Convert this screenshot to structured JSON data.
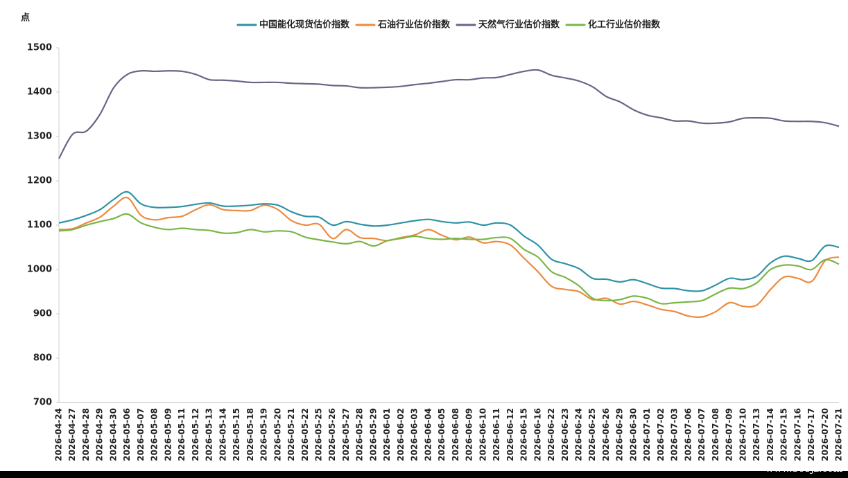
{
  "chart_data": {
    "type": "line",
    "y_label": "点",
    "categories": [
      "2026-04-24",
      "2026-04-27",
      "2026-04-28",
      "2026-04-29",
      "2026-04-30",
      "2026-05-06",
      "2026-05-07",
      "2026-05-08",
      "2026-05-09",
      "2026-05-11",
      "2026-05-12",
      "2026-05-13",
      "2026-05-14",
      "2026-05-15",
      "2026-05-18",
      "2026-05-19",
      "2026-05-20",
      "2026-05-21",
      "2026-05-22",
      "2026-05-25",
      "2026-05-26",
      "2026-05-27",
      "2026-05-28",
      "2026-05-29",
      "2026-06-01",
      "2026-06-02",
      "2026-06-03",
      "2026-06-04",
      "2026-06-05",
      "2026-06-08",
      "2026-06-09",
      "2026-06-10",
      "2026-06-11",
      "2026-06-12",
      "2026-06-15",
      "2026-06-16",
      "2026-06-22",
      "2026-06-23",
      "2026-06-24",
      "2026-06-25",
      "2026-06-26",
      "2026-06-29",
      "2026-06-30",
      "2026-07-01",
      "2026-07-02",
      "2026-07-03",
      "2026-07-06",
      "2026-07-07",
      "2026-07-08",
      "2026-07-09",
      "2026-07-10",
      "2026-07-13",
      "2026-07-14",
      "2026-07-15",
      "2026-07-16",
      "2026-07-17",
      "2026-07-20",
      "2026-07-21"
    ],
    "series": [
      {
        "name": "中国能化现货估价指数",
        "color": "#2e93a6",
        "values": [
          1105,
          1112,
          1122,
          1135,
          1158,
          1175,
          1148,
          1140,
          1140,
          1142,
          1147,
          1150,
          1143,
          1143,
          1145,
          1148,
          1145,
          1130,
          1120,
          1118,
          1100,
          1108,
          1102,
          1098,
          1100,
          1105,
          1110,
          1113,
          1108,
          1105,
          1107,
          1100,
          1105,
          1100,
          1075,
          1055,
          1023,
          1013,
          1002,
          980,
          978,
          972,
          977,
          968,
          958,
          957,
          952,
          952,
          965,
          980,
          977,
          985,
          1015,
          1030,
          1025,
          1020,
          1053,
          1050
        ]
      },
      {
        "name": "石油行业估价指数",
        "color": "#ed8a3f",
        "values": [
          1090,
          1092,
          1105,
          1118,
          1143,
          1162,
          1122,
          1112,
          1117,
          1120,
          1135,
          1146,
          1135,
          1133,
          1133,
          1145,
          1135,
          1110,
          1100,
          1102,
          1070,
          1090,
          1072,
          1070,
          1065,
          1072,
          1078,
          1090,
          1077,
          1067,
          1073,
          1060,
          1063,
          1055,
          1025,
          995,
          962,
          955,
          950,
          932,
          935,
          922,
          928,
          920,
          910,
          905,
          895,
          893,
          905,
          925,
          917,
          920,
          955,
          983,
          980,
          973,
          1020,
          1028
        ]
      },
      {
        "name": "天然气行业估价指数",
        "color": "#6b6486",
        "values": [
          1250,
          1305,
          1312,
          1350,
          1410,
          1440,
          1448,
          1447,
          1448,
          1447,
          1440,
          1428,
          1427,
          1425,
          1422,
          1422,
          1422,
          1420,
          1419,
          1418,
          1415,
          1414,
          1410,
          1410,
          1411,
          1413,
          1417,
          1420,
          1424,
          1428,
          1428,
          1432,
          1433,
          1440,
          1447,
          1450,
          1438,
          1432,
          1425,
          1412,
          1390,
          1378,
          1360,
          1348,
          1342,
          1335,
          1335,
          1330,
          1330,
          1333,
          1341,
          1342,
          1341,
          1335,
          1334,
          1334,
          1331,
          1323
        ]
      },
      {
        "name": "化工行业估价指数",
        "color": "#7ab648",
        "values": [
          1087,
          1090,
          1100,
          1108,
          1115,
          1125,
          1105,
          1095,
          1090,
          1093,
          1090,
          1088,
          1082,
          1083,
          1090,
          1085,
          1087,
          1085,
          1073,
          1067,
          1062,
          1058,
          1063,
          1053,
          1065,
          1070,
          1075,
          1070,
          1068,
          1070,
          1068,
          1068,
          1072,
          1070,
          1045,
          1028,
          995,
          982,
          963,
          935,
          930,
          932,
          940,
          935,
          923,
          925,
          927,
          930,
          945,
          958,
          957,
          970,
          1000,
          1010,
          1008,
          1000,
          1022,
          1012
        ]
      }
    ],
    "ylim": [
      700,
      1500
    ],
    "yticks": [
      700,
      800,
      900,
      1000,
      1100,
      1200,
      1300,
      1400,
      1500
    ],
    "grid": false,
    "legend": "top",
    "watermark": "www.365jz.com"
  }
}
